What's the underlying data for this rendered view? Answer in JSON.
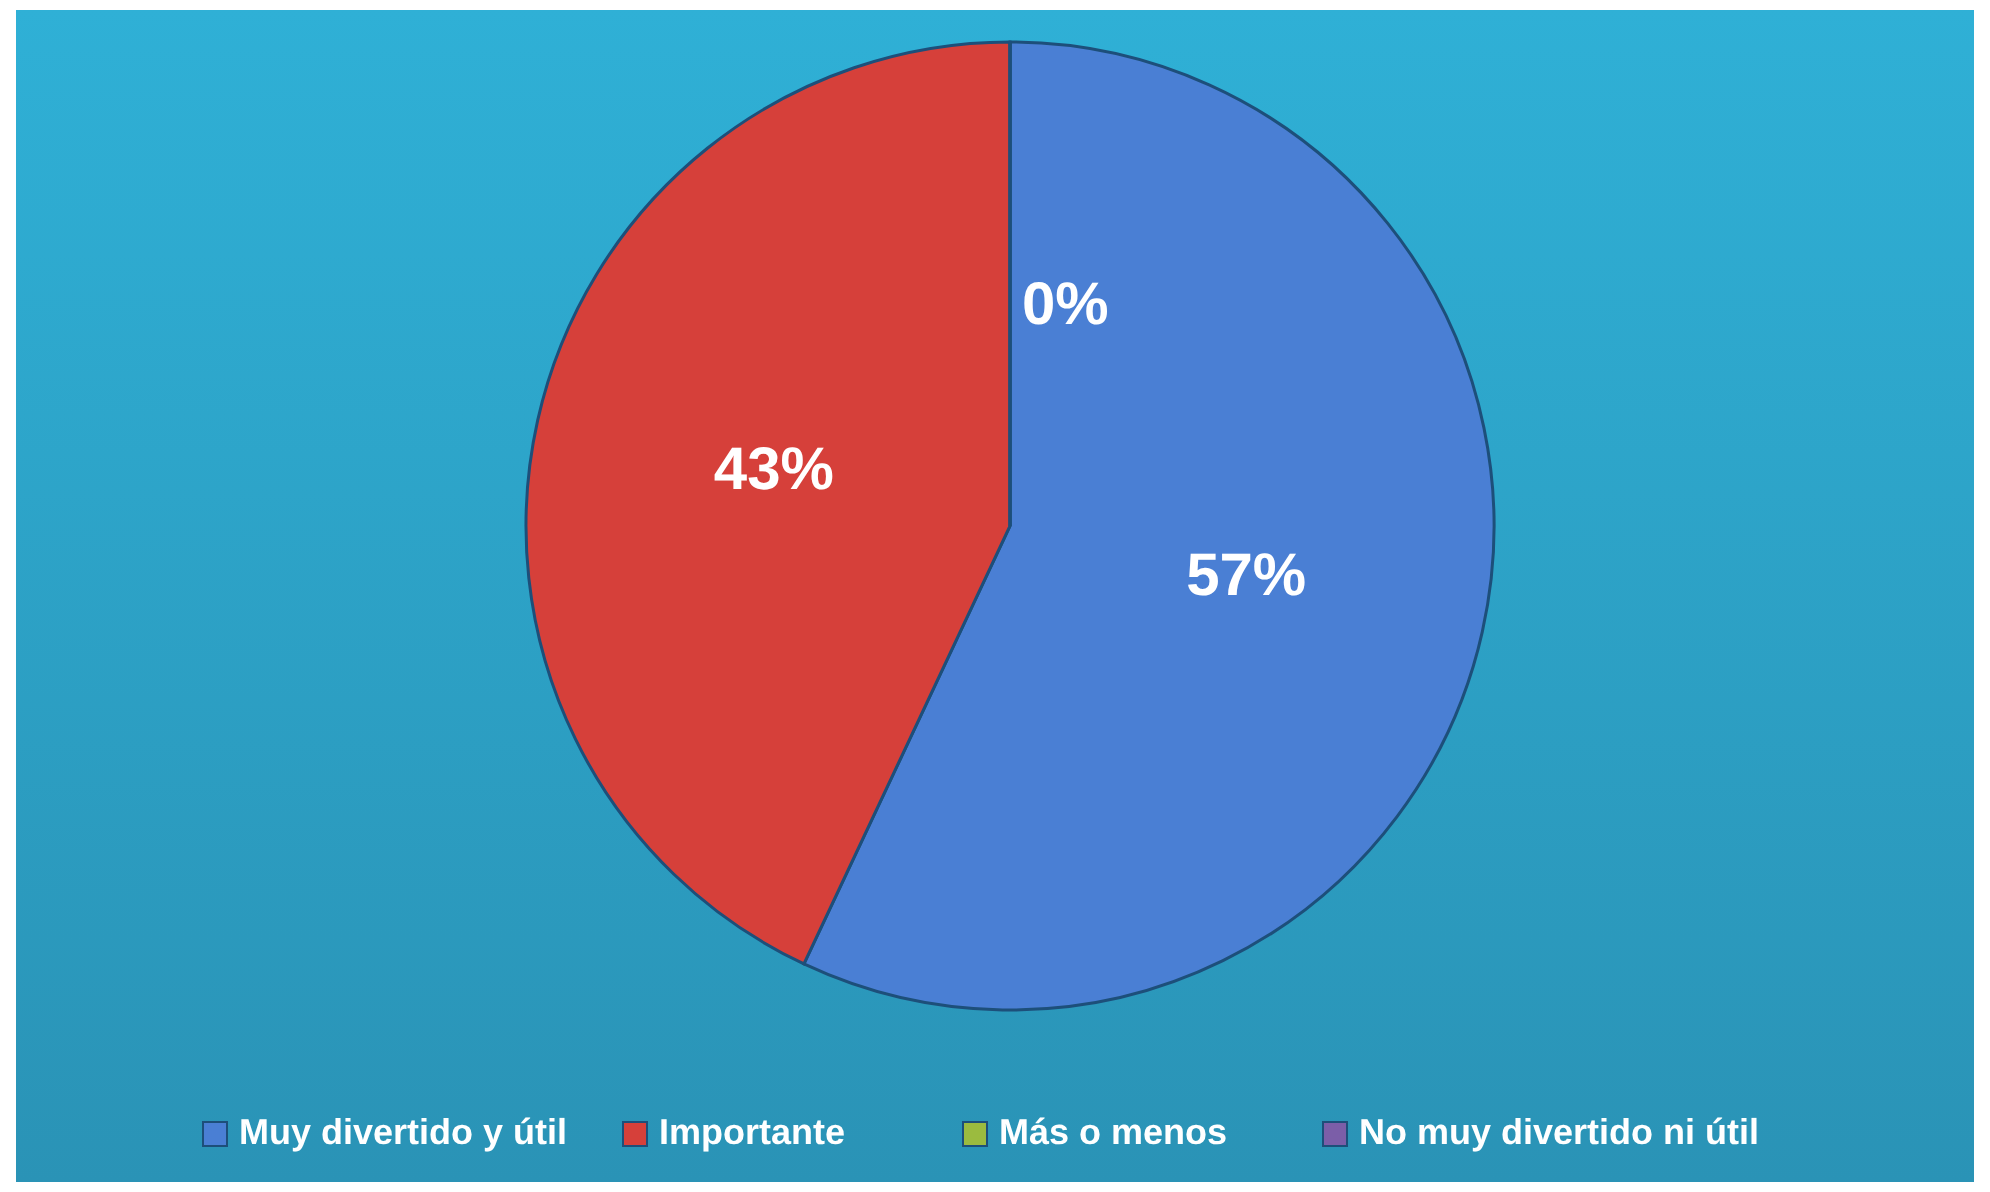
{
  "chart_data": {
    "type": "pie",
    "categories": [
      "Muy divertido y útil",
      "Importante",
      "Más o menos",
      "No muy divertido ni útil"
    ],
    "values": [
      57,
      43,
      0,
      0
    ],
    "colors": [
      "#4a7fd4",
      "#d6403a",
      "#9bbb3f",
      "#7b5ea8"
    ],
    "value_labels": [
      "57%",
      "43%",
      "0%",
      null
    ],
    "legend": "bottom"
  }
}
